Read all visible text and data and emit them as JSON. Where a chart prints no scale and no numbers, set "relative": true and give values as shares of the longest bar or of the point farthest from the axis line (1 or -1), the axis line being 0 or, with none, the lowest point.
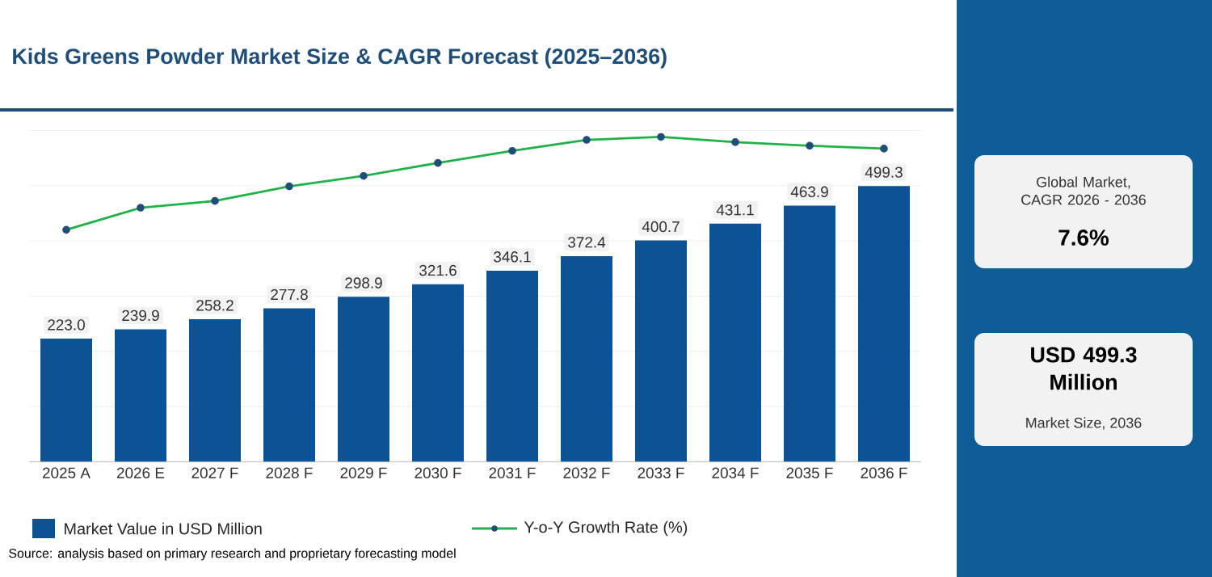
{
  "chart_data": [
    {
      "type": "bar",
      "title": "Kids Greens Powder Market Size & CAGR Forecast (2025–2036)",
      "categories": [
        "2025 A",
        "2026 E",
        "2027 F",
        "2028 F",
        "2029 F",
        "2030 F",
        "2031 F",
        "2032 F",
        "2033 F",
        "2034 F",
        "2035 F",
        "2036 F"
      ],
      "series": [
        {
          "name": "Market Value in USD Million",
          "color": "#0b5394",
          "values": [
            223.0,
            239.9,
            258.2,
            277.8,
            298.9,
            321.6,
            346.1,
            372.4,
            400.7,
            431.1,
            463.9,
            499.3
          ],
          "value_labels": [
            "223.0",
            "239.9",
            "258.2",
            "277.8",
            "298.9",
            "321.6",
            "346.1",
            "372.4",
            "400.7",
            "431.1",
            "463.9",
            "499.3"
          ]
        }
      ],
      "ylim": [
        0,
        600
      ],
      "yticks": [
        {
          "value": 0,
          "label": null
        },
        {
          "value": 100,
          "label": null
        },
        {
          "value": 200,
          "label": null
        },
        {
          "value": 300,
          "label": null
        },
        {
          "value": 400,
          "label": null
        },
        {
          "value": 500,
          "label": null
        },
        {
          "value": 600,
          "label": null
        }
      ],
      "grid": "y",
      "legend": "bottom",
      "tick_labels": "x",
      "annotations": [
        "Source: analysis based on primary research and proprietary forecasting model",
        "Global Market, CAGR 2026 - 2036",
        "7.6%",
        "USD 499.3 Million",
        "Market Size, 2036"
      ]
    },
    {
      "type": "line",
      "relative": true,
      "marker": "circle",
      "legend": "bottom",
      "tick_labels": false,
      "categories": [
        null,
        null,
        null,
        null,
        null,
        null,
        null,
        null,
        null,
        null,
        null,
        null
      ],
      "series": [
        {
          "name": "Y-o-Y Growth Rate (%)",
          "color": "#22b04a",
          "values": [
            0.714,
            0.782,
            0.803,
            0.848,
            0.88,
            0.92,
            0.957,
            0.991,
            1.0,
            0.984,
            0.973,
            0.964
          ]
        }
      ]
    }
  ]
}
